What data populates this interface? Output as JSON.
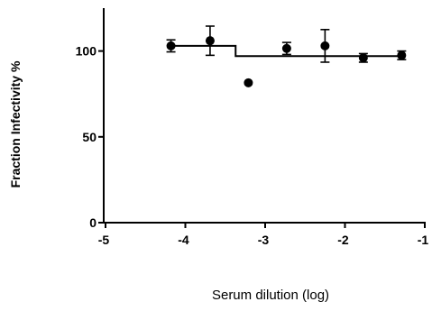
{
  "chart_data": {
    "type": "scatter",
    "title": "",
    "xlabel": "Serum dilution (log)",
    "ylabel": "Fraction Infectivity %",
    "xlim": [
      -5,
      -1
    ],
    "ylim": [
      0,
      125
    ],
    "x_ticks": [
      -5,
      -4,
      -3,
      -2,
      -1
    ],
    "x_tick_labels": [
      "-5",
      "-4",
      "-3",
      "-2",
      "-1"
    ],
    "y_ticks": [
      0,
      50,
      100
    ],
    "y_tick_labels": [
      "0",
      "50",
      "100"
    ],
    "grid": false,
    "legend": "none",
    "series": [
      {
        "name": "",
        "points": [
          {
            "x": -4.18,
            "y": 103,
            "err": 3.5
          },
          {
            "x": -3.69,
            "y": 106,
            "err": 8.5
          },
          {
            "x": -3.21,
            "y": 81.5,
            "err": 0
          },
          {
            "x": -2.73,
            "y": 101.5,
            "err": 3.5
          },
          {
            "x": -2.25,
            "y": 103,
            "err": 9.5
          },
          {
            "x": -1.77,
            "y": 96,
            "err": 2.5
          },
          {
            "x": -1.29,
            "y": 97.5,
            "err": 2.5
          }
        ]
      }
    ],
    "fit": {
      "type": "step",
      "top": 103,
      "bottom": 97,
      "transition_x": -3.37,
      "x_start": -4.18,
      "x_end": -1.29
    },
    "colors": {
      "marks": "#000000"
    }
  }
}
